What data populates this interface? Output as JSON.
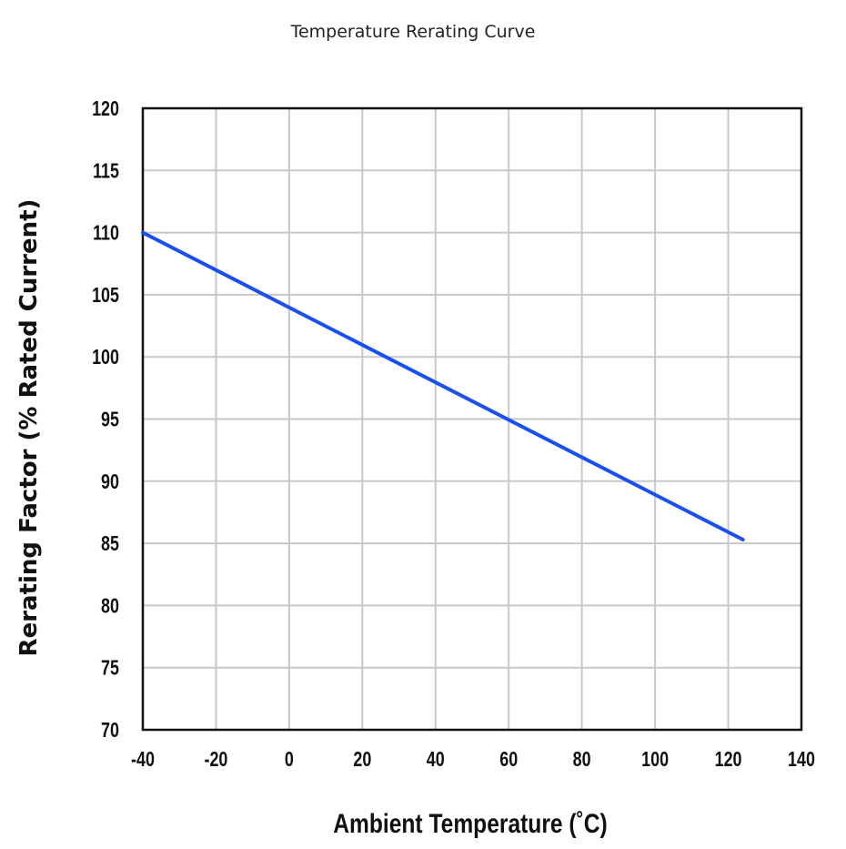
{
  "chart_data": {
    "type": "line",
    "title": "Temperature Rerating Curve",
    "xlabel": "Ambient Temperature (˚C)",
    "ylabel": "Rerating Factor (% Rated Current)",
    "xlim": [
      -40,
      140
    ],
    "ylim": [
      70,
      120
    ],
    "x_ticks": [
      -40,
      -20,
      0,
      20,
      40,
      60,
      80,
      100,
      120,
      140
    ],
    "y_ticks": [
      70,
      75,
      80,
      85,
      90,
      95,
      100,
      105,
      110,
      115,
      120
    ],
    "grid": true,
    "series": [
      {
        "x": [
          -40,
          124
        ],
        "y": [
          110,
          85.3
        ],
        "color": "#1a4ff0"
      }
    ]
  }
}
